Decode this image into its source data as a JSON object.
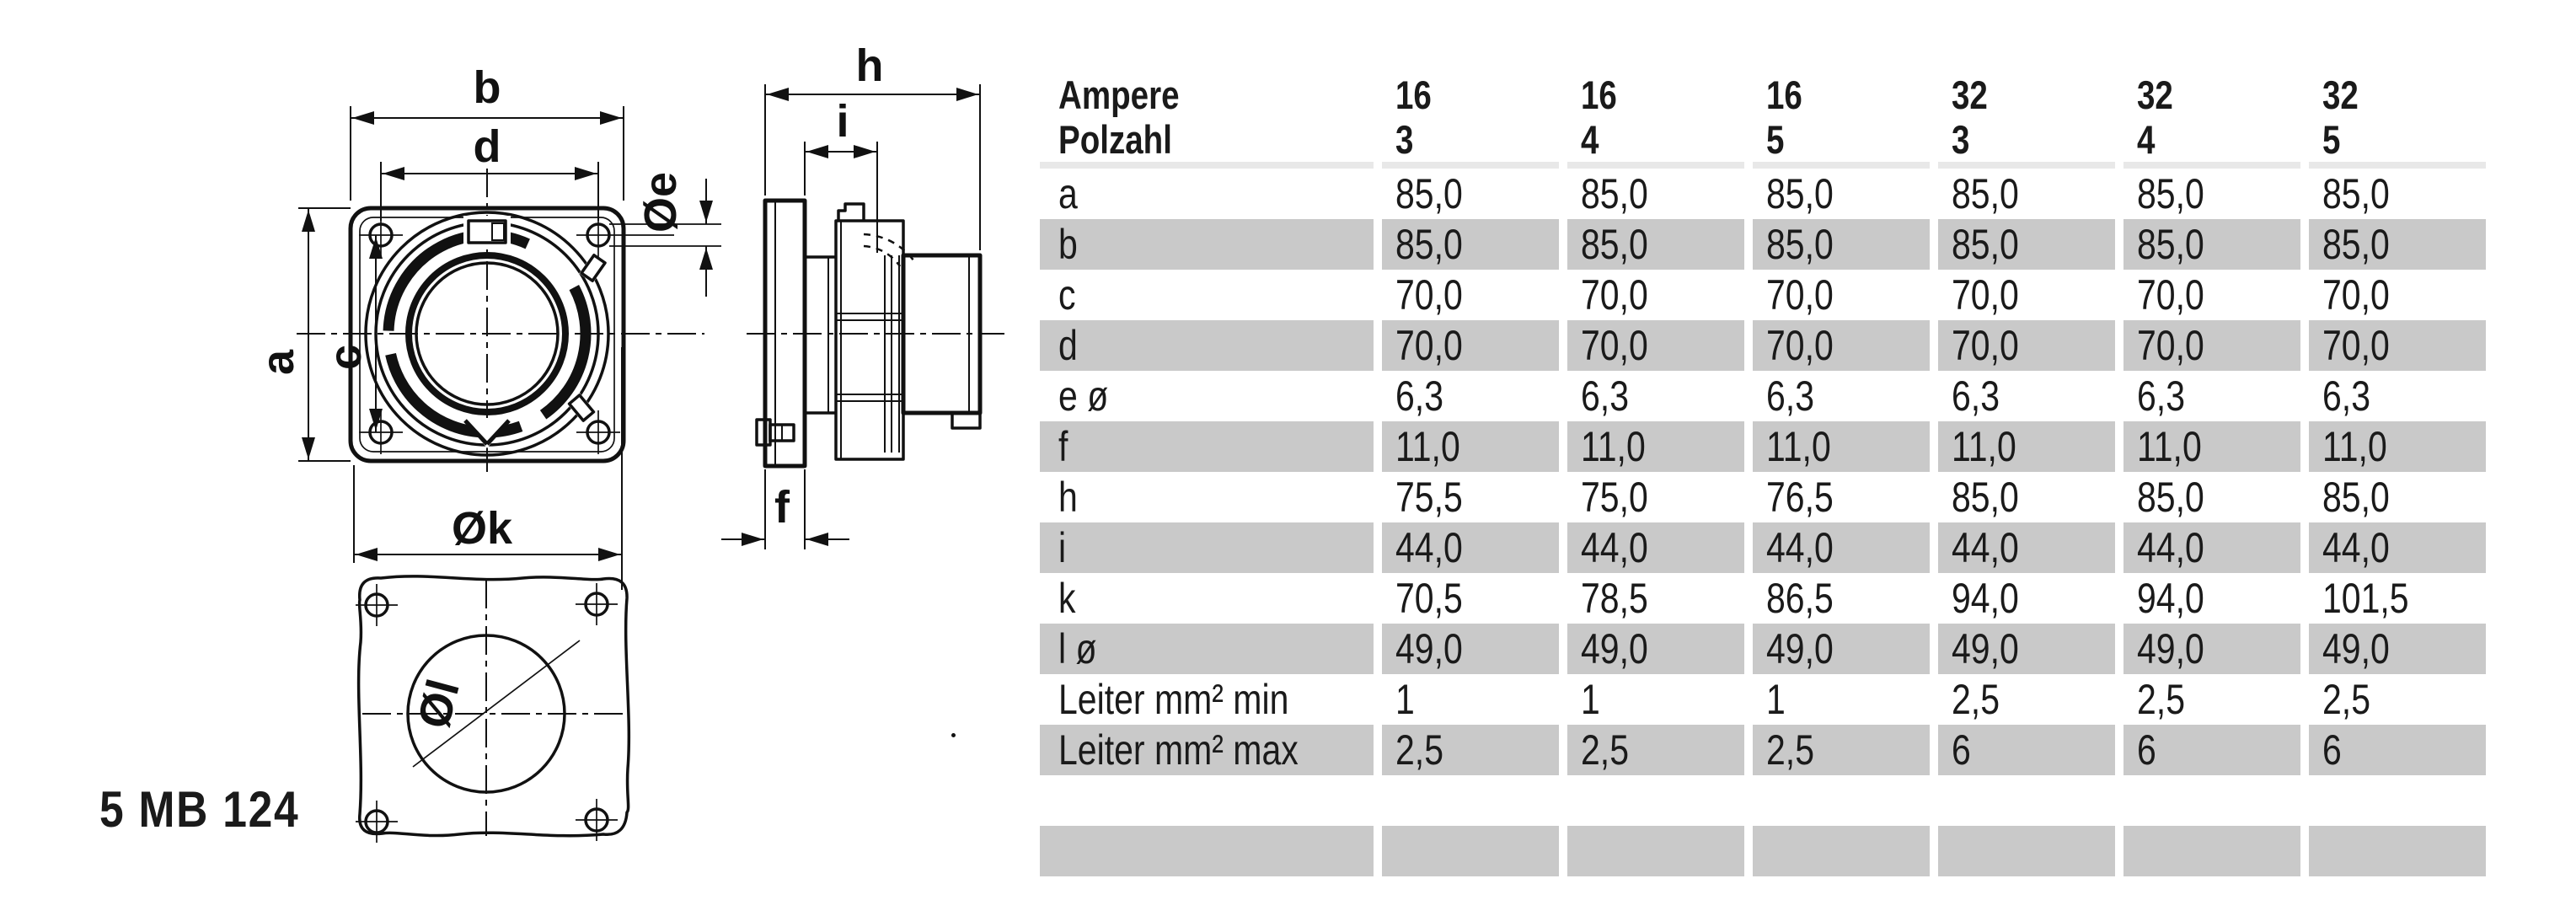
{
  "product_code": "5 MB 124",
  "drawing": {
    "front_view_dims": {
      "b": "b",
      "d": "d",
      "a": "a",
      "c": "c",
      "e": "Øe",
      "k": "Øk"
    },
    "side_view_dims": {
      "h": "h",
      "i": "i",
      "f": "f"
    },
    "bottom_view_dims": {
      "l": "Øl"
    }
  },
  "table": {
    "colors": {
      "row_band": "#c9c9c9",
      "header_rule": "#e8e8e8"
    },
    "header_rows": [
      {
        "label": "Ampere",
        "values": [
          "16",
          "16",
          "16",
          "32",
          "32",
          "32"
        ]
      },
      {
        "label": "Polzahl",
        "values": [
          "3",
          "4",
          "5",
          "3",
          "4",
          "5"
        ]
      }
    ],
    "rows": [
      {
        "label": "a",
        "shaded": false,
        "values": [
          "85,0",
          "85,0",
          "85,0",
          "85,0",
          "85,0",
          "85,0"
        ]
      },
      {
        "label": "b",
        "shaded": true,
        "values": [
          "85,0",
          "85,0",
          "85,0",
          "85,0",
          "85,0",
          "85,0"
        ]
      },
      {
        "label": "c",
        "shaded": false,
        "values": [
          "70,0",
          "70,0",
          "70,0",
          "70,0",
          "70,0",
          "70,0"
        ]
      },
      {
        "label": "d",
        "shaded": true,
        "values": [
          "70,0",
          "70,0",
          "70,0",
          "70,0",
          "70,0",
          "70,0"
        ]
      },
      {
        "label": "e ø",
        "shaded": false,
        "values": [
          "6,3",
          "6,3",
          "6,3",
          "6,3",
          "6,3",
          "6,3"
        ]
      },
      {
        "label": "f",
        "shaded": true,
        "values": [
          "11,0",
          "11,0",
          "11,0",
          "11,0",
          "11,0",
          "11,0"
        ]
      },
      {
        "label": "h",
        "shaded": false,
        "values": [
          "75,5",
          "75,0",
          "76,5",
          "85,0",
          "85,0",
          "85,0"
        ]
      },
      {
        "label": "i",
        "shaded": true,
        "values": [
          "44,0",
          "44,0",
          "44,0",
          "44,0",
          "44,0",
          "44,0"
        ]
      },
      {
        "label": "k",
        "shaded": false,
        "values": [
          "70,5",
          "78,5",
          "86,5",
          "94,0",
          "94,0",
          "101,5"
        ]
      },
      {
        "label": "l ø",
        "shaded": true,
        "values": [
          "49,0",
          "49,0",
          "49,0",
          "49,0",
          "49,0",
          "49,0"
        ]
      },
      {
        "label": "Leiter mm² min",
        "shaded": false,
        "values": [
          "1",
          "1",
          "1",
          "2,5",
          "2,5",
          "2,5"
        ]
      },
      {
        "label": "Leiter mm² max",
        "shaded": true,
        "values": [
          "2,5",
          "2,5",
          "2,5",
          "6",
          "6",
          "6"
        ]
      },
      {
        "label": "",
        "shaded": false,
        "values": [
          "",
          "",
          "",
          "",
          "",
          ""
        ]
      },
      {
        "label": "",
        "shaded": true,
        "values": [
          "",
          "",
          "",
          "",
          "",
          ""
        ]
      }
    ]
  }
}
